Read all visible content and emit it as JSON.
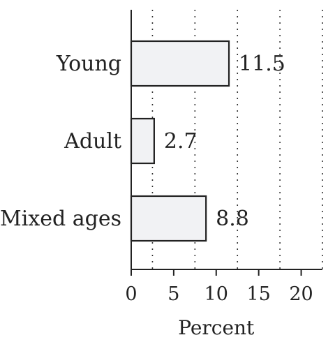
{
  "chart_data": {
    "type": "bar",
    "orientation": "horizontal",
    "categories": [
      "Young",
      "Adult",
      "Mixed ages"
    ],
    "values": [
      11.5,
      2.7,
      8.8
    ],
    "data_labels": [
      "11.5",
      "2.7",
      "8.8"
    ],
    "xlabel": "Percent",
    "ylabel": "",
    "xlim": [
      0,
      22.5
    ],
    "xticks": [
      0,
      5,
      10,
      15,
      20
    ],
    "xtick_labels": [
      "0",
      "5",
      "10",
      "15",
      "20"
    ],
    "grid": "vertical dotted",
    "legend": "none",
    "bar_fill": "#f1f2f4",
    "bar_stroke": "#222222"
  }
}
